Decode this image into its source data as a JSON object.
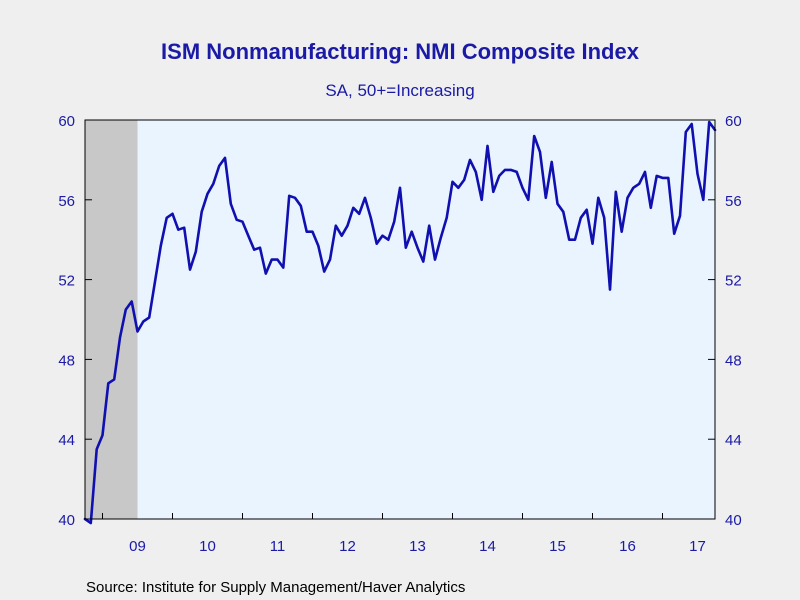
{
  "chart_data": {
    "type": "line",
    "title": "ISM Nonmanufacturing: NMI Composite Index",
    "subtitle": "SA, 50+=Increasing",
    "source": "Source:  Institute for Supply Management/Haver Analytics",
    "ylim": [
      40,
      60
    ],
    "yticks": [
      40,
      44,
      48,
      52,
      56,
      60
    ],
    "xlim": [
      2008.75,
      2017.75
    ],
    "xticks": [
      {
        "label": "09",
        "year": 2009
      },
      {
        "label": "10",
        "year": 2010
      },
      {
        "label": "11",
        "year": 2011
      },
      {
        "label": "12",
        "year": 2012
      },
      {
        "label": "13",
        "year": 2013
      },
      {
        "label": "14",
        "year": 2014
      },
      {
        "label": "15",
        "year": 2015
      },
      {
        "label": "16",
        "year": 2016
      },
      {
        "label": "17",
        "year": 2017
      }
    ],
    "recession": [
      2008.75,
      2009.5
    ],
    "grid": false,
    "colors": {
      "line": "#1010b0",
      "plot_bg": "#eaf4ff",
      "recession": "#c8c8c8",
      "text": "#1a1aa6"
    },
    "series": [
      {
        "start": "2008-10",
        "frequency": "monthly",
        "values": [
          40.0,
          39.8,
          43.5,
          44.2,
          46.8,
          47.0,
          49.1,
          50.5,
          50.9,
          49.4,
          49.9,
          50.1,
          51.9,
          53.7,
          55.1,
          55.3,
          54.5,
          54.6,
          52.5,
          53.4,
          55.4,
          56.3,
          56.8,
          57.7,
          58.1,
          55.8,
          55.0,
          54.9,
          54.2,
          53.5,
          53.6,
          52.3,
          53.0,
          53.0,
          52.6,
          56.2,
          56.1,
          55.7,
          54.4,
          54.4,
          53.7,
          52.4,
          53.0,
          54.7,
          54.2,
          54.7,
          55.6,
          55.3,
          56.1,
          55.1,
          53.8,
          54.2,
          54.0,
          54.9,
          56.6,
          53.6,
          54.4,
          53.6,
          52.9,
          54.7,
          53.0,
          54.1,
          55.1,
          56.9,
          56.6,
          57.0,
          58.0,
          57.4,
          56.0,
          58.7,
          56.4,
          57.2,
          57.5,
          57.5,
          57.4,
          56.6,
          56.0,
          59.2,
          58.4,
          56.1,
          57.9,
          55.8,
          55.4,
          54.0,
          54.0,
          55.1,
          55.5,
          53.8,
          56.1,
          55.1,
          51.5,
          56.4,
          54.4,
          56.1,
          56.6,
          56.8,
          57.4,
          55.6,
          57.2,
          57.1,
          57.1,
          54.3,
          55.2,
          59.4,
          59.8,
          57.3,
          56.0,
          59.9,
          59.5
        ]
      }
    ]
  }
}
